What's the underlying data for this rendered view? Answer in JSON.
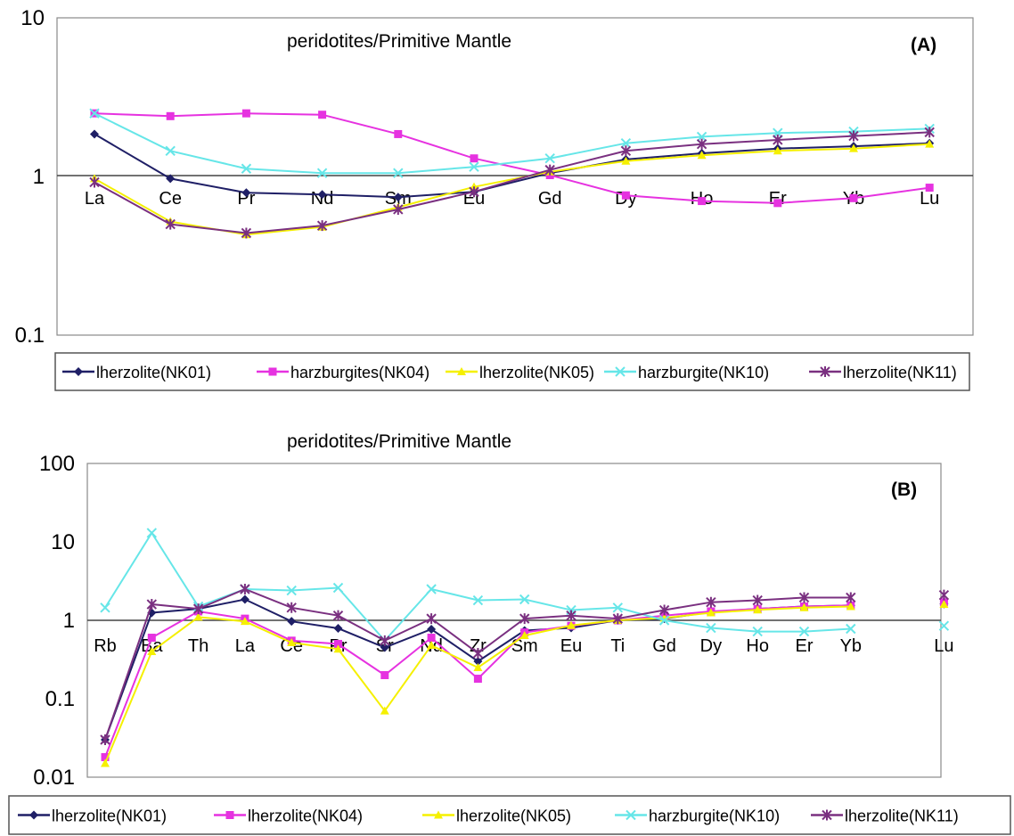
{
  "colors": {
    "lherzolite_nk01": "#1f1f66",
    "pink": "#e632e0",
    "yellow": "#f5f000",
    "cyan": "#66e6e8",
    "purple": "#7a3080"
  },
  "chart_data": [
    {
      "type": "line",
      "panel_label": "(A)",
      "title": "peridotites/Primitive Mantle",
      "yscale": "log",
      "ylim": [
        0.1,
        10
      ],
      "ytick_labels": [
        "10",
        "1",
        "0.1"
      ],
      "categories": [
        "La",
        "Ce",
        "Pr",
        "Nd",
        "Sm",
        "Eu",
        "Gd",
        "Dy",
        "Ho",
        "Er",
        "Yb",
        "Lu"
      ],
      "legend_placement": "bottom",
      "series": [
        {
          "name": "lherzolite(NK01)",
          "color": "#1f1f66",
          "marker": "diamond",
          "values": [
            1.85,
            0.97,
            0.79,
            0.77,
            0.74,
            0.8,
            1.05,
            1.28,
            1.4,
            1.5,
            1.55,
            1.62
          ]
        },
        {
          "name": "harzburgites(NK04)",
          "color": "#e632e0",
          "marker": "square",
          "values": [
            2.5,
            2.4,
            2.5,
            2.45,
            1.85,
            1.3,
            1.02,
            0.76,
            0.7,
            0.68,
            0.73,
            0.85
          ]
        },
        {
          "name": "lherzolite(NK05)",
          "color": "#f5f000",
          "marker": "triangle",
          "values": [
            0.97,
            0.52,
            0.43,
            0.48,
            0.64,
            0.86,
            1.07,
            1.25,
            1.36,
            1.45,
            1.5,
            1.6
          ]
        },
        {
          "name": "harzburgite(NK10)",
          "color": "#66e6e8",
          "marker": "x",
          "values": [
            2.5,
            1.45,
            1.12,
            1.05,
            1.05,
            1.15,
            1.3,
            1.62,
            1.78,
            1.88,
            1.92,
            2.0
          ]
        },
        {
          "name": "lherzolite(NK11)",
          "color": "#7a3080",
          "marker": "star",
          "values": [
            0.92,
            0.5,
            0.44,
            0.49,
            0.62,
            0.8,
            1.1,
            1.45,
            1.6,
            1.7,
            1.8,
            1.9
          ]
        }
      ]
    },
    {
      "type": "line",
      "panel_label": "(B)",
      "title": "peridotites/Primitive Mantle",
      "yscale": "log",
      "ylim": [
        0.01,
        100
      ],
      "ytick_labels": [
        "100",
        "10",
        "1",
        "0.1",
        "0.01"
      ],
      "categories": [
        "Rb",
        "Ba",
        "Th",
        "La",
        "Ce",
        "Pr",
        "Sr",
        "Nd",
        "Zr",
        "Sm",
        "Eu",
        "Ti",
        "Gd",
        "Dy",
        "Ho",
        "Er",
        "Yb",
        "",
        "Lu"
      ],
      "legend_placement": "bottom",
      "series": [
        {
          "name": "lherzolite(NK01)",
          "color": "#1f1f66",
          "marker": "diamond",
          "values": [
            0.03,
            1.25,
            1.4,
            1.85,
            0.97,
            0.79,
            0.45,
            0.77,
            0.3,
            0.74,
            0.8,
            1.0,
            1.05,
            1.28,
            1.4,
            1.5,
            1.55,
            null,
            1.62
          ]
        },
        {
          "name": "lherzolite(NK04)",
          "color": "#e632e0",
          "marker": "square",
          "values": [
            0.018,
            0.6,
            1.3,
            1.05,
            0.55,
            0.5,
            0.2,
            0.6,
            0.18,
            0.7,
            0.85,
            1.0,
            1.15,
            1.3,
            1.4,
            1.5,
            1.55,
            null,
            1.7
          ]
        },
        {
          "name": "lherzolite(NK05)",
          "color": "#f5f000",
          "marker": "triangle",
          "values": [
            0.015,
            0.4,
            1.1,
            0.97,
            0.52,
            0.43,
            0.07,
            0.48,
            0.25,
            0.64,
            0.86,
            1.0,
            1.07,
            1.25,
            1.36,
            1.45,
            1.5,
            null,
            1.6
          ]
        },
        {
          "name": "harzburgite(NK10)",
          "color": "#66e6e8",
          "marker": "x",
          "values": [
            1.45,
            13,
            1.5,
            2.5,
            2.4,
            2.6,
            0.55,
            2.5,
            1.8,
            1.85,
            1.35,
            1.45,
            1.0,
            0.8,
            0.72,
            0.72,
            0.78,
            null,
            0.85
          ]
        },
        {
          "name": "lherzolite(NK11)",
          "color": "#7a3080",
          "marker": "star",
          "values": [
            0.03,
            1.6,
            1.4,
            2.5,
            1.45,
            1.15,
            0.55,
            1.05,
            0.38,
            1.05,
            1.15,
            1.05,
            1.35,
            1.7,
            1.8,
            1.95,
            1.95,
            null,
            2.1
          ]
        }
      ]
    }
  ]
}
